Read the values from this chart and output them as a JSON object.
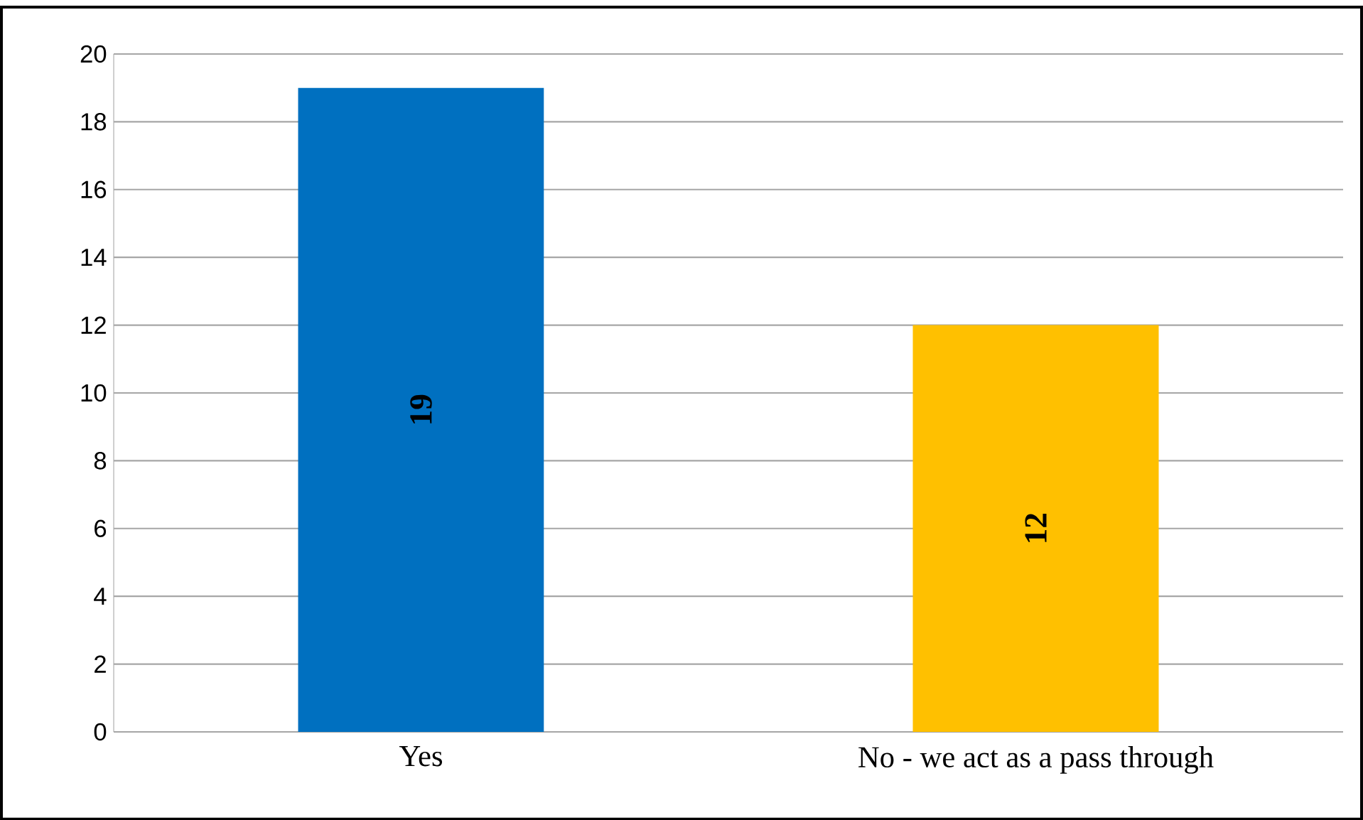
{
  "chart_data": {
    "type": "bar",
    "categories": [
      "Yes",
      "No - we act as a pass through"
    ],
    "values": [
      19,
      12
    ],
    "colors": [
      "#0070c0",
      "#ffc000"
    ],
    "ylim": [
      0,
      20
    ],
    "yticks": [
      0,
      2,
      4,
      6,
      8,
      10,
      12,
      14,
      16,
      18,
      20
    ],
    "grid": "y",
    "data_labels": true
  }
}
